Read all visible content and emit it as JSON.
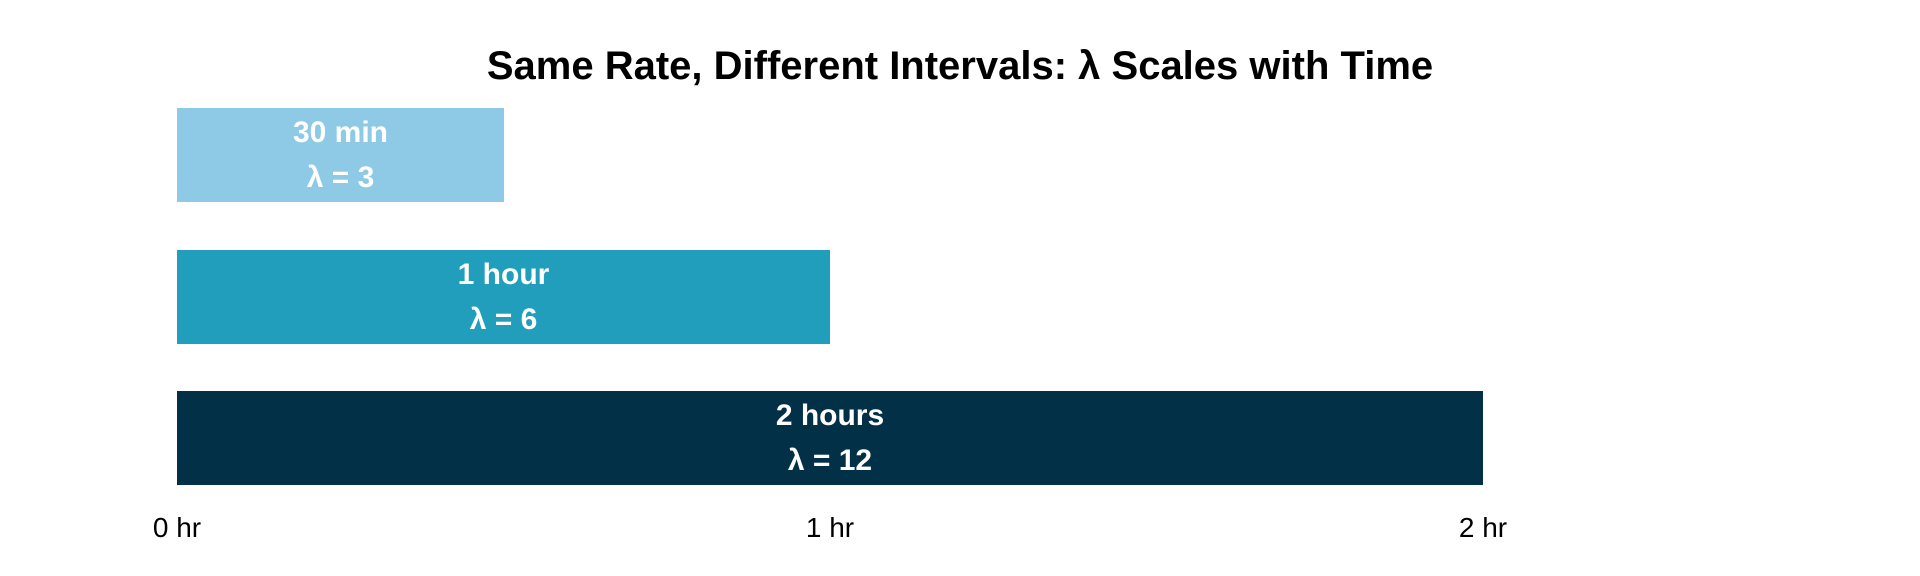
{
  "page": {
    "background_color": "#ffffff",
    "text_color": "#000000"
  },
  "chart_data": {
    "type": "bar",
    "orientation": "horizontal",
    "title": "Same Rate, Different Intervals: λ Scales with Time",
    "xlabel": "",
    "ylabel": "",
    "x_unit": "hours",
    "xlim": [
      0,
      2
    ],
    "grid": false,
    "legend": false,
    "x_ticks": [
      {
        "value": 0,
        "label": "0 hr"
      },
      {
        "value": 1,
        "label": "1 hr"
      },
      {
        "value": 2,
        "label": "2 hr"
      }
    ],
    "bars": [
      {
        "name": "interval-30min",
        "duration_label": "30 min",
        "duration_hours": 0.5,
        "lambda": 3,
        "lambda_label": "λ = 3",
        "color": "#8ecae6",
        "text_color": "#ffffff"
      },
      {
        "name": "interval-1hour",
        "duration_label": "1 hour",
        "duration_hours": 1,
        "lambda": 6,
        "lambda_label": "λ = 6",
        "color": "#219ebc",
        "text_color": "#ffffff"
      },
      {
        "name": "interval-2hours",
        "duration_label": "2 hours",
        "duration_hours": 2,
        "lambda": 12,
        "lambda_label": "λ = 12",
        "color": "#023047",
        "text_color": "#ffffff"
      }
    ]
  }
}
